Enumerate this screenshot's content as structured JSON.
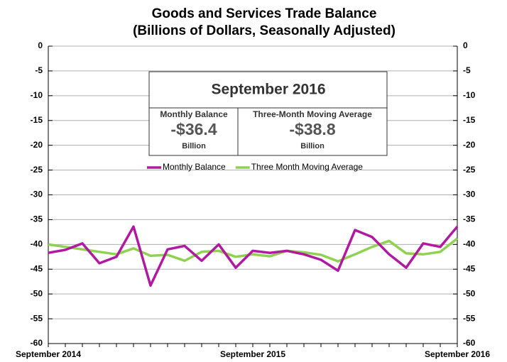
{
  "chart_data": {
    "type": "line",
    "title": "Goods and Services Trade Balance",
    "subtitle": "(Billions of Dollars, Seasonally Adjusted)",
    "categories": [
      "September 2014",
      null,
      null,
      null,
      null,
      null,
      null,
      null,
      null,
      null,
      null,
      null,
      "September 2015",
      null,
      null,
      null,
      null,
      null,
      null,
      null,
      null,
      null,
      null,
      null,
      "September 2016"
    ],
    "series": [
      {
        "name": "Monthly Balance",
        "color": "#b01aa0",
        "values": [
          -41.7,
          -41.1,
          -39.8,
          -43.8,
          -42.5,
          -36.4,
          -48.3,
          -41.0,
          -40.3,
          -43.3,
          -40.0,
          -44.7,
          -41.3,
          -41.7,
          -41.3,
          -42.0,
          -43.1,
          -45.3,
          -37.1,
          -38.5,
          -42.0,
          -44.7,
          -39.8,
          -40.5,
          -36.4
        ]
      },
      {
        "name": "Three Month Moving Average",
        "color": "#8fd150",
        "values": [
          -40.0,
          -40.5,
          -41.0,
          -41.5,
          -42.0,
          -40.8,
          -42.3,
          -42.1,
          -43.3,
          -41.5,
          -41.3,
          -42.5,
          -42.0,
          -42.4,
          -41.3,
          -41.6,
          -42.1,
          -43.4,
          -42.0,
          -40.5,
          -39.3,
          -41.8,
          -42.0,
          -41.5,
          -38.8
        ]
      }
    ],
    "ylim": [
      -60,
      0
    ],
    "yticks": [
      0,
      -5,
      -10,
      -15,
      -20,
      -25,
      -30,
      -35,
      -40,
      -45,
      -50,
      -55,
      -60
    ],
    "y2lim": [
      -60,
      0
    ],
    "y2ticks": [
      0,
      -5,
      -10,
      -15,
      -20,
      -25,
      -30,
      -35,
      -40,
      -45,
      -50,
      -55,
      -60
    ],
    "grid": true,
    "summary": {
      "title": "September 2016",
      "left": {
        "label": "Monthly Balance",
        "value": "-$36.4",
        "unit": "Billion"
      },
      "right": {
        "label": "Three-Month Moving Average",
        "value": "-$38.8",
        "unit": "Billion"
      }
    }
  }
}
